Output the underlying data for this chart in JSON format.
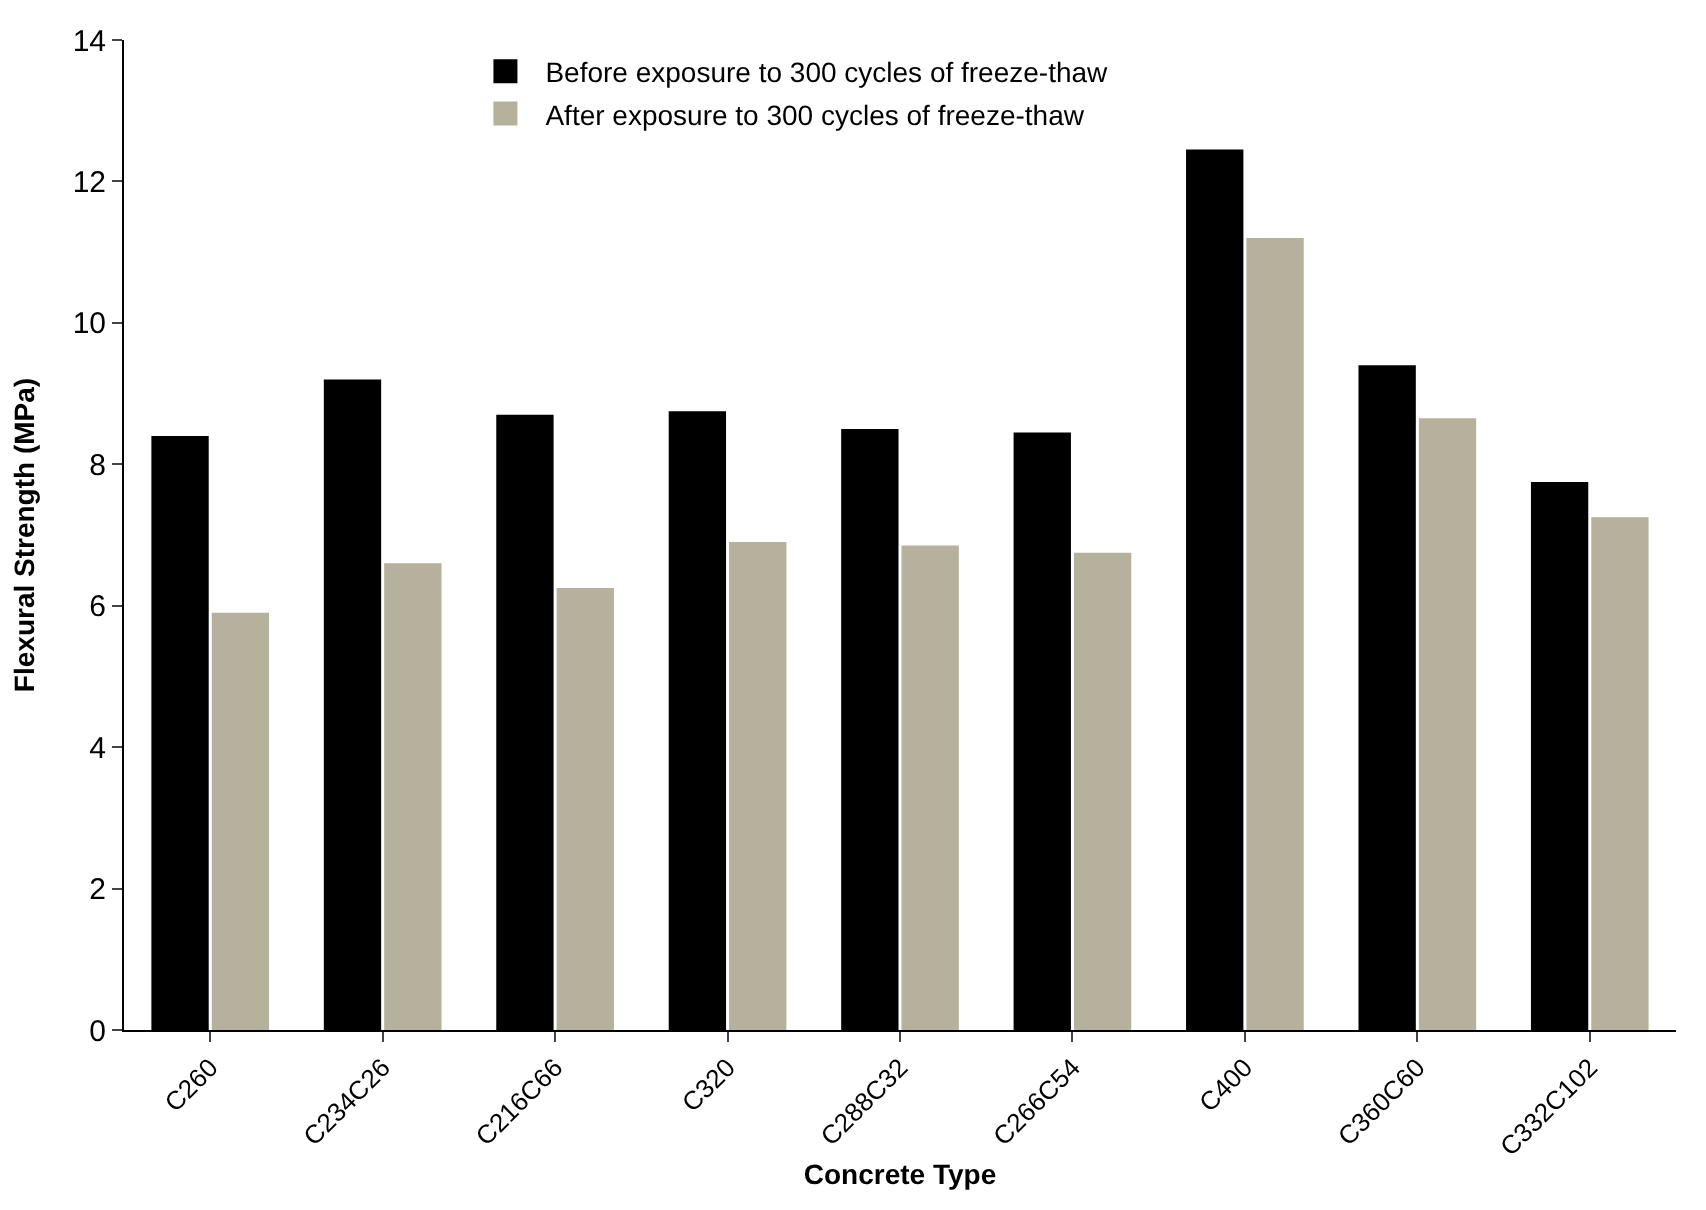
{
  "chart_data": {
    "type": "bar",
    "xlabel": "Concrete Type",
    "ylabel": "Flexural Strength (MPa)",
    "categories": [
      "C260",
      "C234C26",
      "C216C66",
      "C320",
      "C288C32",
      "C266C54",
      "C400",
      "C360C60",
      "C332C102"
    ],
    "series": [
      {
        "name": "Before exposure to 300 cycles of freeze-thaw",
        "color": "#000000",
        "values": [
          8.4,
          9.2,
          8.7,
          8.75,
          8.5,
          8.45,
          12.45,
          9.4,
          7.75
        ]
      },
      {
        "name": "After exposure to 300 cycles of freeze-thaw",
        "color": "#b5b19c",
        "values": [
          5.9,
          6.6,
          6.25,
          6.9,
          6.85,
          6.75,
          11.2,
          8.65,
          7.25
        ]
      }
    ],
    "ylim": [
      0,
      14
    ],
    "yticks": [
      0,
      2,
      4,
      6,
      8,
      10,
      12,
      14
    ],
    "grid": false,
    "legend": "top"
  }
}
